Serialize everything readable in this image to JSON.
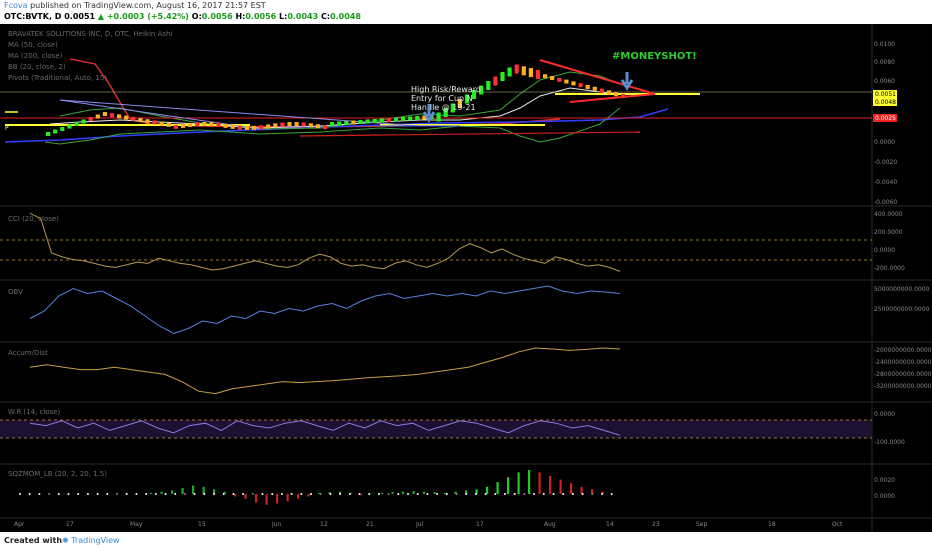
{
  "header": {
    "user": "Fcova",
    "published": "published on TradingView.com, August 16, 2017 21:57 EST",
    "symbol": "OTC:BVTK, D",
    "last": "0.0051",
    "change": "+0.0003 (+5.42%)",
    "o_label": "O:",
    "o": "0.0056",
    "h_label": "H:",
    "h": "0.0056",
    "l_label": "L:",
    "l": "0.0043",
    "c_label": "C:",
    "c": "0.0048"
  },
  "footer": {
    "created": "Created with",
    "brand": "TradingView"
  },
  "chart_data": [
    {
      "type": "candlestick",
      "title": "BRAVATEK SOLUTIONS INC, D, OTC, Heikin Ashi",
      "legend": [
        "MA (50, close)",
        "MA (200, close)",
        "BB (20, close, 2)",
        "Pivots (Traditional, Auto, 15)"
      ],
      "y_ticks": [
        "0.0100",
        "0.0080",
        "0.0060",
        "0.0040",
        "0.0025",
        "0.0000",
        "-0.0020",
        "-0.0040",
        "-0.0060"
      ],
      "price_tags": [
        {
          "value": "0.0051",
          "color": "#ffff33"
        },
        {
          "value": "0.0048",
          "color": "#ffff33"
        },
        {
          "value": "0.0025",
          "color": "#ee2222"
        }
      ],
      "annotations": [
        "High Risk/Reward",
        "Entry for Cup N",
        "Handle @ 19-21",
        "#MONEYSHOT!"
      ],
      "pivot_label": "P"
    },
    {
      "type": "line",
      "title": "CCI (20, close)",
      "y_ticks": [
        "400.0000",
        "200.0000",
        "0.0000",
        "-200.0000"
      ],
      "values": [
        420,
        380,
        120,
        90,
        70,
        60,
        40,
        20,
        10,
        30,
        50,
        40,
        80,
        60,
        40,
        30,
        10,
        -10,
        0,
        20,
        40,
        60,
        40,
        20,
        10,
        30,
        80,
        110,
        90,
        40,
        20,
        30,
        10,
        0,
        40,
        60,
        30,
        10,
        40,
        80,
        150,
        190,
        160,
        120,
        150,
        110,
        80,
        60,
        40,
        90,
        70,
        40,
        20,
        30,
        10,
        -20
      ]
    },
    {
      "type": "line",
      "title": "OBV",
      "y_ticks": [
        "5000000000.0000",
        "2500000000.0000"
      ],
      "values": [
        0.35,
        0.5,
        0.8,
        0.95,
        0.85,
        0.9,
        0.75,
        0.6,
        0.4,
        0.2,
        0.05,
        0.15,
        0.3,
        0.25,
        0.4,
        0.35,
        0.5,
        0.45,
        0.55,
        0.5,
        0.6,
        0.65,
        0.55,
        0.7,
        0.8,
        0.85,
        0.75,
        0.8,
        0.85,
        0.8,
        0.85,
        0.8,
        0.9,
        0.85,
        0.9,
        0.95,
        1.0,
        0.9,
        0.85,
        0.9,
        0.88,
        0.85
      ]
    },
    {
      "type": "line",
      "title": "Accum/Dist",
      "y_ticks": [
        "-2000000000.0000",
        "-2400000000.0000",
        "-2800000000.0000",
        "-3200000000.0000"
      ],
      "values": [
        0.6,
        0.65,
        0.6,
        0.55,
        0.55,
        0.6,
        0.55,
        0.5,
        0.45,
        0.3,
        0.1,
        0.05,
        0.15,
        0.2,
        0.25,
        0.3,
        0.28,
        0.3,
        0.32,
        0.35,
        0.38,
        0.4,
        0.42,
        0.45,
        0.5,
        0.55,
        0.6,
        0.7,
        0.8,
        0.92,
        1.0,
        0.98,
        0.95,
        0.97,
        1.0,
        0.98
      ]
    },
    {
      "type": "line",
      "title": "W.R (14, close)",
      "y_ticks": [
        "0.0000",
        "-100.0000"
      ],
      "values": [
        -30,
        -40,
        -20,
        -50,
        -30,
        -60,
        -40,
        -20,
        -50,
        -70,
        -40,
        -30,
        -60,
        -20,
        -40,
        -50,
        -30,
        -20,
        -40,
        -60,
        -30,
        -50,
        -20,
        -40,
        -30,
        -60,
        -40,
        -20,
        -30,
        -50,
        -70,
        -40,
        -20,
        -30,
        -50,
        -40,
        -60,
        -80
      ]
    },
    {
      "type": "bar",
      "title": "SQZMOM_LB (20, 2, 20, 1.5)",
      "y_ticks": [
        "0.0020",
        "0.0000"
      ],
      "values": [
        0.05,
        0.1,
        0.15,
        0.25,
        0.35,
        0.3,
        0.2,
        0.1,
        -0.1,
        -0.2,
        -0.35,
        -0.45,
        -0.4,
        -0.3,
        -0.2,
        -0.1,
        0.05,
        0.08,
        0.1,
        0.05,
        -0.05,
        0.02,
        0.05,
        0.08,
        0.1,
        0.12,
        0.1,
        0.08,
        0.05,
        0.1,
        0.15,
        0.2,
        0.3,
        0.5,
        0.7,
        0.9,
        1.0,
        0.9,
        0.75,
        0.6,
        0.45,
        0.3,
        0.2,
        0.1
      ]
    }
  ],
  "x_axis": [
    "Apr",
    "17",
    "May",
    "15",
    "Jun",
    "12",
    "21",
    "Jul",
    "17",
    "Aug",
    "14",
    "23",
    "Sep",
    "18",
    "Oct"
  ]
}
